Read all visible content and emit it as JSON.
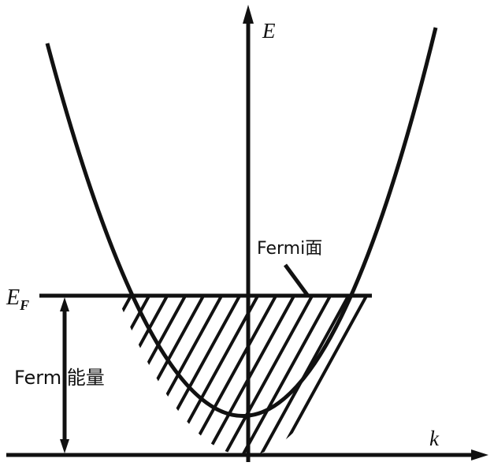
{
  "figure": {
    "axis_y_label": "E",
    "axis_x_label": "k",
    "fermi_level_label": {
      "main": "E",
      "sub": "F"
    },
    "fermi_surface_label": "Fermi面",
    "fermi_energy_label": "Fermi能量"
  },
  "colors": {
    "ink": "#111111",
    "background": "#ffffff"
  }
}
